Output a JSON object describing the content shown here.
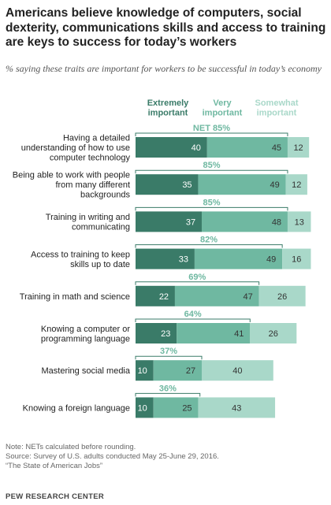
{
  "header": {
    "title": "Americans believe knowledge of computers, social dexterity, communications skills and access to training are keys to success for today’s workers",
    "subtitle": "% saying these traits are important for workers to be successful in today’s economy"
  },
  "chart_data": {
    "type": "bar",
    "orientation": "horizontal",
    "stacked": true,
    "legend_position": "top",
    "xlim": [
      0,
      100
    ],
    "series": [
      {
        "name": "Extremely important",
        "color": "#3a7b68",
        "values": [
          40,
          35,
          37,
          33,
          22,
          23,
          10,
          10
        ]
      },
      {
        "name": "Very important",
        "color": "#6fb8a1",
        "values": [
          45,
          49,
          48,
          49,
          47,
          41,
          27,
          25
        ]
      },
      {
        "name": "Somewhat important",
        "color": "#a9d8c9",
        "values": [
          12,
          12,
          13,
          16,
          26,
          26,
          40,
          43
        ]
      }
    ],
    "categories": [
      "Having a detailed understanding of how to use computer technology",
      "Being able to work with people from many different backgrounds",
      "Training in writing and communicating",
      "Access to training to keep skills up to date",
      "Training in math and science",
      "Knowing a computer or programming language",
      "Mastering social media",
      "Knowing a foreign language"
    ],
    "net_labels": [
      "NET 85%",
      "85%",
      "85%",
      "82%",
      "69%",
      "64%",
      "37%",
      "36%"
    ],
    "net_values": [
      85,
      85,
      85,
      82,
      69,
      64,
      37,
      36
    ]
  },
  "footer": {
    "note": "Note: NETs calculated before rounding.",
    "source": "Source: Survey of U.S. adults conducted May 25-June 29, 2016.",
    "report": "“The State of American Jobs”",
    "brand": "PEW RESEARCH CENTER"
  }
}
